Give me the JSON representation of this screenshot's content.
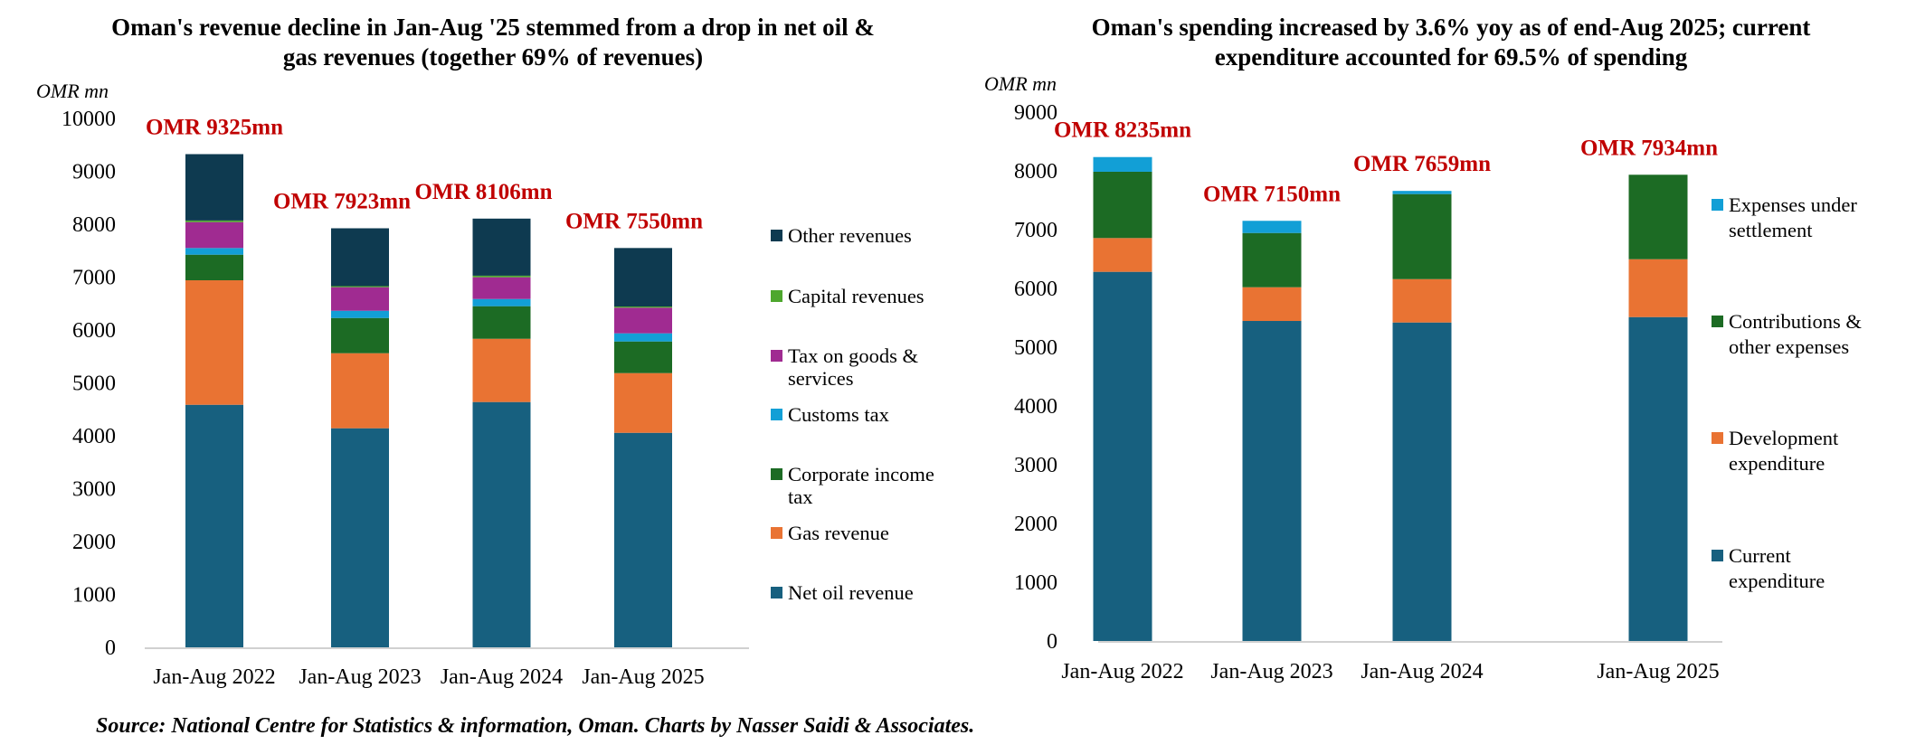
{
  "source": "Source: National Centre for Statistics & information, Oman. Charts by Nasser Saidi & Associates.",
  "chart_data": [
    {
      "type": "bar",
      "stacked": true,
      "title": "Oman's revenue decline in Jan-Aug '25 stemmed from a drop in net oil & gas revenues (together 69% of revenues)",
      "ylabel": "OMR mn",
      "xlabel": "",
      "ylim": [
        0,
        10000
      ],
      "yticks": [
        0,
        1000,
        2000,
        3000,
        4000,
        5000,
        6000,
        7000,
        8000,
        9000,
        10000
      ],
      "grid": false,
      "legend_position": "right",
      "categories": [
        "Jan-Aug 2022",
        "Jan-Aug 2023",
        "Jan-Aug 2024",
        "Jan-Aug 2025"
      ],
      "totals": [
        "OMR 9325mn",
        "OMR 7923mn",
        "OMR 8106mn",
        "OMR 7550mn"
      ],
      "series": [
        {
          "name": "Net oil revenue",
          "color": "#17607f",
          "values": [
            4586,
            4142,
            4638,
            4056
          ]
        },
        {
          "name": "Gas revenue",
          "color": "#e97333",
          "values": [
            2354,
            1419,
            1196,
            1129
          ]
        },
        {
          "name": "Corporate income tax",
          "color": "#1c6b24",
          "values": [
            484,
            666,
            616,
            598
          ]
        },
        {
          "name": "Customs tax",
          "color": "#129fd6",
          "values": [
            126,
            137,
            136,
            154
          ]
        },
        {
          "name": "Tax on goods & services",
          "color": "#a02b91",
          "values": [
            490,
            445,
            411,
            485
          ]
        },
        {
          "name": "Capital revenues",
          "color": "#4ea72e",
          "values": [
            30,
            20,
            30,
            22
          ]
        },
        {
          "name": "Other revenues",
          "color": "#0e3a50",
          "values": [
            1255,
            1094,
            1079,
            1106
          ]
        }
      ],
      "legend": [
        {
          "lines": [
            "Other revenues"
          ],
          "color": "#0e3a50"
        },
        {
          "lines": [
            "Capital revenues"
          ],
          "color": "#4ea72e"
        },
        {
          "lines": [
            "Tax on goods &",
            "services"
          ],
          "color": "#a02b91"
        },
        {
          "lines": [
            "Customs tax"
          ],
          "color": "#129fd6"
        },
        {
          "lines": [
            "Corporate income",
            "tax"
          ],
          "color": "#1c6b24"
        },
        {
          "lines": [
            "Gas revenue"
          ],
          "color": "#e97333"
        },
        {
          "lines": [
            "Net oil revenue"
          ],
          "color": "#17607f"
        }
      ]
    },
    {
      "type": "bar",
      "stacked": true,
      "title": "Oman's spending increased by 3.6% yoy as of end-Aug 2025; current expenditure accounted for 69.5% of spending",
      "ylabel": "OMR mn",
      "xlabel": "",
      "ylim": [
        0,
        9000
      ],
      "yticks": [
        0,
        1000,
        2000,
        3000,
        4000,
        5000,
        6000,
        7000,
        8000,
        9000
      ],
      "grid": false,
      "legend_position": "right",
      "categories": [
        "Jan-Aug 2022",
        "Jan-Aug 2023",
        "Jan-Aug 2024",
        "Jan-Aug 2025"
      ],
      "totals": [
        "OMR 8235mn",
        "OMR 7150mn",
        "OMR 7659mn",
        "OMR 7934mn"
      ],
      "series": [
        {
          "name": "Current expenditure",
          "color": "#17607f",
          "values": [
            6282,
            5446,
            5420,
            5512
          ]
        },
        {
          "name": "Development expenditure",
          "color": "#e97333",
          "values": [
            575,
            574,
            738,
            985
          ]
        },
        {
          "name": "Contributions & other expenses",
          "color": "#1c6b24",
          "values": [
            1128,
            923,
            1447,
            1437
          ]
        },
        {
          "name": "Expenses under settlement",
          "color": "#129fd6",
          "values": [
            250,
            207,
            54,
            0
          ]
        }
      ],
      "legend": [
        {
          "lines": [
            "Expenses under",
            "settlement"
          ],
          "color": "#129fd6"
        },
        {
          "lines": [
            "Contributions &",
            "other expenses"
          ],
          "color": "#1c6b24"
        },
        {
          "lines": [
            "Development",
            "expenditure"
          ],
          "color": "#e97333"
        },
        {
          "lines": [
            "Current",
            "expenditure"
          ],
          "color": "#17607f"
        }
      ]
    }
  ]
}
